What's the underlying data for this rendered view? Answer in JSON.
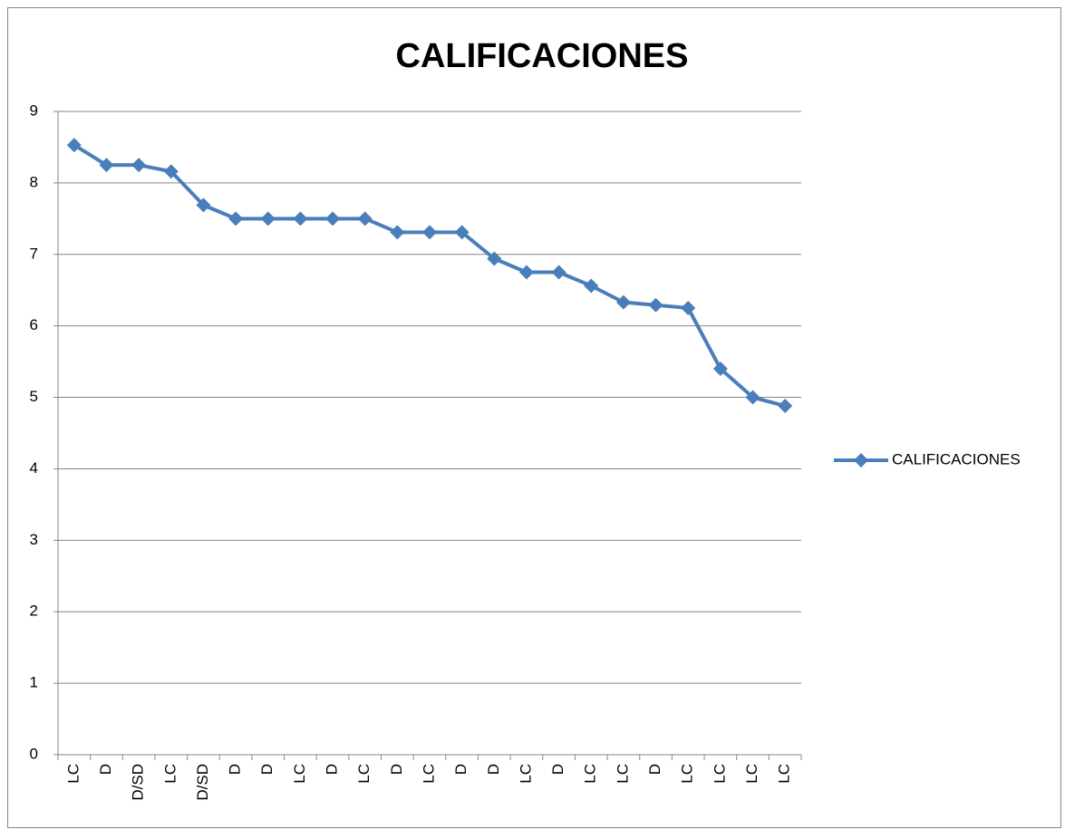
{
  "chart_data": {
    "type": "line",
    "title": "CALIFICACIONES",
    "categories": [
      "LC",
      "D",
      "D/SD",
      "LC",
      "D/SD",
      "D",
      "D",
      "LC",
      "D",
      "LC",
      "D",
      "LC",
      "D",
      "D",
      "LC",
      "D",
      "LC",
      "LC",
      "D",
      "LC",
      "LC",
      "LC",
      "LC"
    ],
    "series": [
      {
        "name": "CALIFICACIONES",
        "color": "#4a7ebb",
        "values": [
          8.53,
          8.25,
          8.25,
          8.16,
          7.69,
          7.5,
          7.5,
          7.5,
          7.5,
          7.5,
          7.31,
          7.31,
          7.31,
          6.94,
          6.75,
          6.75,
          6.56,
          6.33,
          6.29,
          6.25,
          5.4,
          5,
          4.88
        ]
      }
    ],
    "ylim": [
      0,
      9
    ],
    "yticks": [
      0,
      1,
      2,
      3,
      4,
      5,
      6,
      7,
      8,
      9
    ],
    "grid": true,
    "legend": "right"
  }
}
